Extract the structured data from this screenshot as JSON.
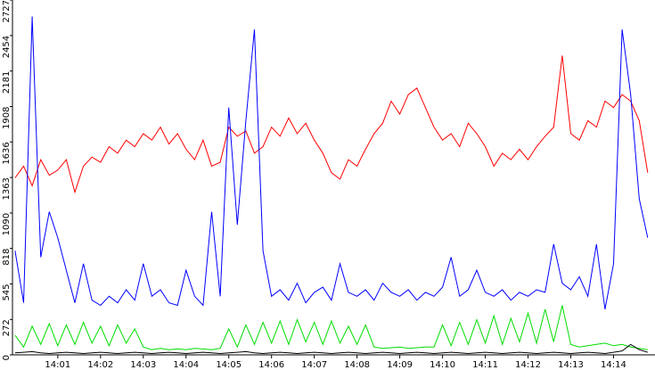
{
  "chart_data": {
    "type": "line",
    "x": [
      0,
      0.2,
      0.4,
      0.6,
      0.8,
      1,
      1.2,
      1.4,
      1.6,
      1.8,
      2,
      2.2,
      2.4,
      2.6,
      2.8,
      3,
      3.2,
      3.4,
      3.6,
      3.8,
      4,
      4.2,
      4.4,
      4.6,
      4.8,
      5,
      5.2,
      5.4,
      5.6,
      5.8,
      6,
      6.2,
      6.4,
      6.6,
      6.8,
      7,
      7.2,
      7.4,
      7.6,
      7.8,
      8,
      8.2,
      8.4,
      8.6,
      8.8,
      9,
      9.2,
      9.4,
      9.6,
      9.8,
      10,
      10.2,
      10.4,
      10.6,
      10.8,
      11,
      11.2,
      11.4,
      11.6,
      11.8,
      12,
      12.2,
      12.4,
      12.6,
      12.8,
      13,
      13.2,
      13.4,
      13.6,
      13.8,
      14,
      14.2,
      14.4,
      14.6,
      14.8
    ],
    "series": [
      {
        "color": "#ff0000",
        "values": [
          1360,
          1450,
          1300,
          1500,
          1380,
          1420,
          1500,
          1250,
          1450,
          1520,
          1480,
          1600,
          1550,
          1650,
          1600,
          1700,
          1650,
          1750,
          1620,
          1700,
          1580,
          1500,
          1650,
          1450,
          1480,
          1750,
          1680,
          1720,
          1550,
          1600,
          1750,
          1680,
          1820,
          1700,
          1780,
          1650,
          1550,
          1400,
          1350,
          1500,
          1450,
          1580,
          1700,
          1780,
          1950,
          1850,
          2000,
          2050,
          1900,
          1750,
          1650,
          1700,
          1600,
          1780,
          1700,
          1600,
          1450,
          1550,
          1500,
          1580,
          1500,
          1600,
          1680,
          1750,
          2300,
          1700,
          1650,
          1800,
          1750,
          1950,
          1900,
          2000,
          1950,
          1800,
          1400
        ]
      },
      {
        "color": "#0000ff",
        "values": [
          800,
          400,
          2600,
          750,
          1100,
          900,
          650,
          400,
          700,
          420,
          380,
          450,
          400,
          500,
          420,
          700,
          450,
          500,
          400,
          380,
          650,
          450,
          380,
          1100,
          450,
          1900,
          1000,
          1800,
          2500,
          800,
          450,
          500,
          420,
          550,
          400,
          480,
          520,
          420,
          700,
          480,
          450,
          500,
          420,
          550,
          480,
          450,
          500,
          420,
          480,
          450,
          520,
          750,
          450,
          500,
          650,
          480,
          450,
          500,
          420,
          480,
          450,
          500,
          480,
          850,
          550,
          500,
          600,
          450,
          850,
          350,
          700,
          2500,
          2000,
          1200,
          900
        ]
      },
      {
        "color": "#00dd00",
        "values": [
          150,
          60,
          220,
          80,
          240,
          70,
          230,
          80,
          250,
          90,
          220,
          70,
          230,
          90,
          200,
          60,
          40,
          50,
          40,
          45,
          40,
          50,
          45,
          40,
          50,
          200,
          60,
          230,
          80,
          250,
          90,
          260,
          80,
          270,
          100,
          250,
          80,
          260,
          90,
          220,
          80,
          230,
          60,
          50,
          55,
          60,
          50,
          55,
          60,
          60,
          230,
          70,
          250,
          80,
          270,
          90,
          300,
          80,
          280,
          100,
          320,
          90,
          350,
          100,
          380,
          80,
          60,
          70,
          80,
          90,
          70,
          80,
          60,
          50,
          40
        ]
      },
      {
        "color": "#000000",
        "values": [
          15,
          20,
          25,
          15,
          10,
          15,
          20,
          15,
          10,
          15,
          20,
          15,
          10,
          15,
          20,
          15,
          10,
          15,
          20,
          15,
          10,
          15,
          20,
          15,
          10,
          15,
          20,
          25,
          15,
          10,
          15,
          20,
          15,
          10,
          15,
          20,
          15,
          10,
          15,
          20,
          15,
          10,
          15,
          20,
          15,
          10,
          15,
          20,
          15,
          10,
          15,
          20,
          15,
          10,
          15,
          20,
          15,
          10,
          15,
          20,
          15,
          10,
          15,
          20,
          15,
          10,
          15,
          20,
          15,
          10,
          20,
          30,
          80,
          40,
          20
        ]
      }
    ],
    "xlim": [
      -0.06,
      14.97
    ],
    "xticks": [
      {
        "value": 1,
        "label": "14:01"
      },
      {
        "value": 2,
        "label": "14:02"
      },
      {
        "value": 3,
        "label": "14:03"
      },
      {
        "value": 4,
        "label": "14:04"
      },
      {
        "value": 5,
        "label": "14:05"
      },
      {
        "value": 6,
        "label": "14:06"
      },
      {
        "value": 7,
        "label": "14:07"
      },
      {
        "value": 8,
        "label": "14:08"
      },
      {
        "value": 9,
        "label": "14:09"
      },
      {
        "value": 10,
        "label": "14:10"
      },
      {
        "value": 11,
        "label": "14:11"
      },
      {
        "value": 12,
        "label": "14:12"
      },
      {
        "value": 13,
        "label": "14:13"
      },
      {
        "value": 14,
        "label": "14:14"
      }
    ],
    "ylim": [
      0,
      2727
    ],
    "yticks": [
      0,
      272,
      545,
      818,
      1090,
      1363,
      1636,
      1908,
      2181,
      2454,
      2727
    ]
  }
}
